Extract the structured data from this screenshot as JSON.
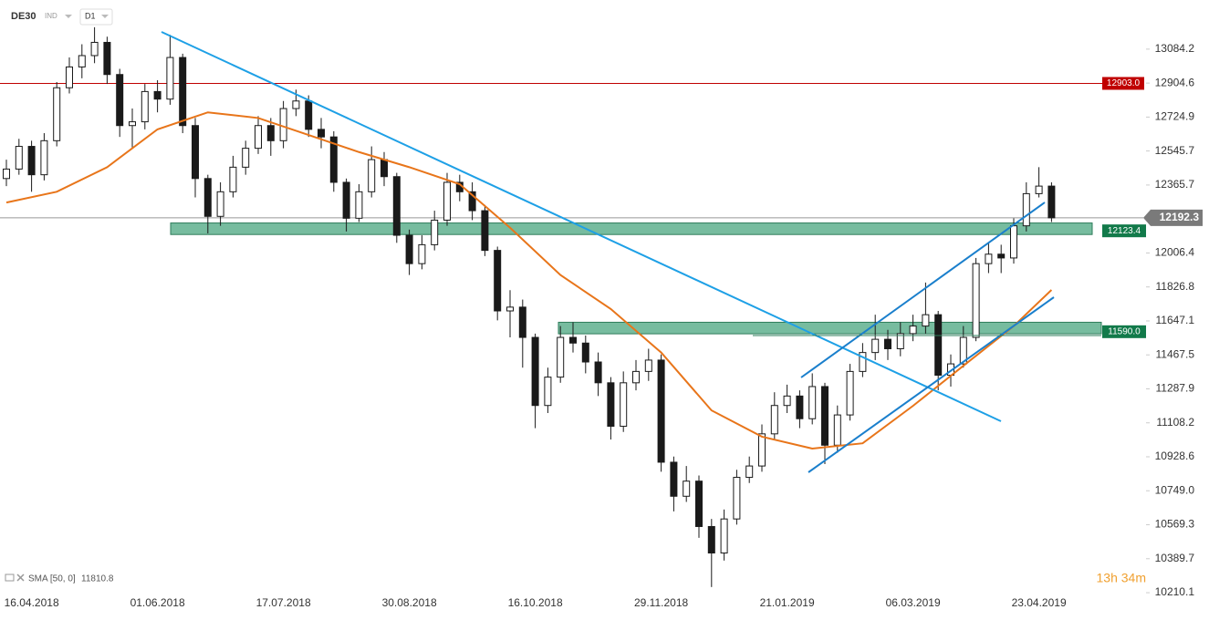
{
  "chart_data": {
    "type": "candlestick",
    "symbol": "DE30",
    "market": "IND",
    "timeframe": "D1",
    "countdown": "13h 34m",
    "categories": [
      null,
      null,
      "16.04.2018",
      null,
      null,
      null,
      null,
      null,
      null,
      null,
      null,
      null,
      "01.06.2018",
      null,
      null,
      null,
      null,
      null,
      null,
      null,
      null,
      null,
      "17.07.2018",
      null,
      null,
      null,
      null,
      null,
      null,
      null,
      null,
      null,
      "30.08.2018",
      null,
      null,
      null,
      null,
      null,
      null,
      null,
      null,
      null,
      "16.10.2018",
      null,
      null,
      null,
      null,
      null,
      null,
      null,
      null,
      null,
      "29.11.2018",
      null,
      null,
      null,
      null,
      null,
      null,
      null,
      null,
      null,
      "21.01.2019",
      null,
      null,
      null,
      null,
      null,
      null,
      null,
      null,
      null,
      "06.03.2019",
      null,
      null,
      null,
      null,
      null,
      null,
      null,
      null,
      null,
      "23.04.2019",
      null
    ],
    "open": [
      12400,
      12450,
      12570,
      12420,
      12600,
      12880,
      12990,
      13050,
      13120,
      12950,
      12680,
      12700,
      12860,
      12820,
      13040,
      12680,
      12400,
      12200,
      12330,
      12460,
      12560,
      12680,
      12600,
      12770,
      12810,
      12660,
      12620,
      12380,
      12190,
      12330,
      12500,
      12410,
      12100,
      11950,
      12050,
      12180,
      12380,
      12330,
      12230,
      12020,
      11700,
      11720,
      11560,
      11200,
      11350,
      11560,
      11530,
      11430,
      11320,
      11090,
      11320,
      11380,
      11440,
      10900,
      10720,
      10800,
      10560,
      10420,
      10600,
      10820,
      10880,
      11050,
      11200,
      11250,
      11130,
      11300,
      10990,
      11150,
      11380,
      11480,
      11550,
      11500,
      11580,
      11620,
      11680,
      11360,
      11420,
      11560,
      11950,
      12000,
      11980,
      12150,
      12320,
      12360
    ],
    "high": [
      12500,
      12610,
      12600,
      12640,
      12910,
      13040,
      13110,
      13200,
      13150,
      12980,
      12770,
      12900,
      12920,
      13160,
      13060,
      12720,
      12420,
      12380,
      12520,
      12600,
      12730,
      12720,
      12810,
      12870,
      12840,
      12720,
      12650,
      12400,
      12370,
      12570,
      12540,
      12430,
      12130,
      12100,
      12230,
      12430,
      12420,
      12380,
      12260,
      12040,
      11810,
      11760,
      11580,
      11400,
      11620,
      11640,
      11570,
      11480,
      11350,
      11380,
      11440,
      11500,
      11470,
      10930,
      10880,
      10830,
      10600,
      10650,
      10860,
      10930,
      11100,
      11270,
      11310,
      11280,
      11370,
      11320,
      11200,
      11420,
      11530,
      11680,
      11600,
      11640,
      11680,
      11850,
      11700,
      11470,
      11620,
      11980,
      12060,
      12050,
      12190,
      12380,
      12460,
      12380
    ],
    "low": [
      12360,
      12420,
      12330,
      12390,
      12570,
      12850,
      12930,
      13010,
      12900,
      12620,
      12560,
      12660,
      12750,
      12790,
      12640,
      12300,
      12110,
      12150,
      12300,
      12420,
      12530,
      12520,
      12560,
      12730,
      12620,
      12560,
      12330,
      12120,
      12170,
      12300,
      12360,
      12060,
      11890,
      11920,
      12020,
      12150,
      12280,
      12180,
      11990,
      11650,
      11560,
      11400,
      11080,
      11160,
      11320,
      11480,
      11370,
      11250,
      11020,
      11060,
      11280,
      11330,
      10850,
      10640,
      10690,
      10500,
      10240,
      10380,
      10570,
      10790,
      10850,
      11020,
      11160,
      11080,
      11100,
      10890,
      10950,
      11120,
      11350,
      11440,
      11440,
      11460,
      11540,
      11580,
      11280,
      11300,
      11400,
      11540,
      11900,
      11900,
      11950,
      12120,
      12300,
      12170
    ],
    "close": [
      12450,
      12570,
      12420,
      12600,
      12880,
      12990,
      13050,
      13120,
      12950,
      12680,
      12700,
      12860,
      12820,
      13040,
      12680,
      12400,
      12200,
      12330,
      12460,
      12560,
      12680,
      12600,
      12770,
      12810,
      12660,
      12620,
      12380,
      12190,
      12330,
      12500,
      12410,
      12100,
      11950,
      12050,
      12180,
      12380,
      12330,
      12230,
      12020,
      11700,
      11720,
      11560,
      11200,
      11350,
      11560,
      11530,
      11430,
      11320,
      11090,
      11320,
      11380,
      11440,
      10900,
      10720,
      10800,
      10560,
      10420,
      10600,
      10820,
      10880,
      11050,
      11200,
      11250,
      11130,
      11300,
      10990,
      11150,
      11380,
      11480,
      11550,
      11500,
      11580,
      11620,
      11680,
      11360,
      11420,
      11560,
      11950,
      12000,
      11980,
      12150,
      12320,
      12360,
      12192.3
    ],
    "up_color": "#ffffff",
    "down_color": "#1a1a1a",
    "sma": {
      "name": "SMA [50, 0]",
      "color": "#e8751a",
      "x": [
        0,
        4,
        8,
        12,
        16,
        20,
        24,
        28,
        32,
        36,
        40,
        44,
        48,
        52,
        56,
        60,
        64,
        68,
        72,
        76,
        80,
        83
      ],
      "values": [
        12273,
        12330,
        12460,
        12660,
        12750,
        12720,
        12630,
        12540,
        12460,
        12370,
        12140,
        11890,
        11710,
        11480,
        11174,
        11035,
        10972,
        11000,
        11198,
        11410,
        11620,
        11810.8
      ]
    },
    "levels": [
      {
        "value": 12903.0,
        "label": "12903.0",
        "color": "#c00000"
      }
    ],
    "zones": [
      {
        "value": 12123.4,
        "low": 12104,
        "high": 12165,
        "color": "#5fb08e"
      },
      {
        "value": 11590.0,
        "label": "11590.0",
        "low": 11579,
        "high": 11640,
        "color": "#5fb08e"
      }
    ],
    "ylim": [
      10138,
      13344
    ],
    "yticks": [
      13084.2,
      12904.6,
      12724.9,
      12545.7,
      12365.7,
      12006.4,
      11826.8,
      11647.1,
      11467.5,
      11287.9,
      11108.2,
      10928.6,
      {
        "value": 10749.0,
        "label": "10749.0"
      },
      10569.3,
      10389.7,
      10210.1
    ]
  }
}
